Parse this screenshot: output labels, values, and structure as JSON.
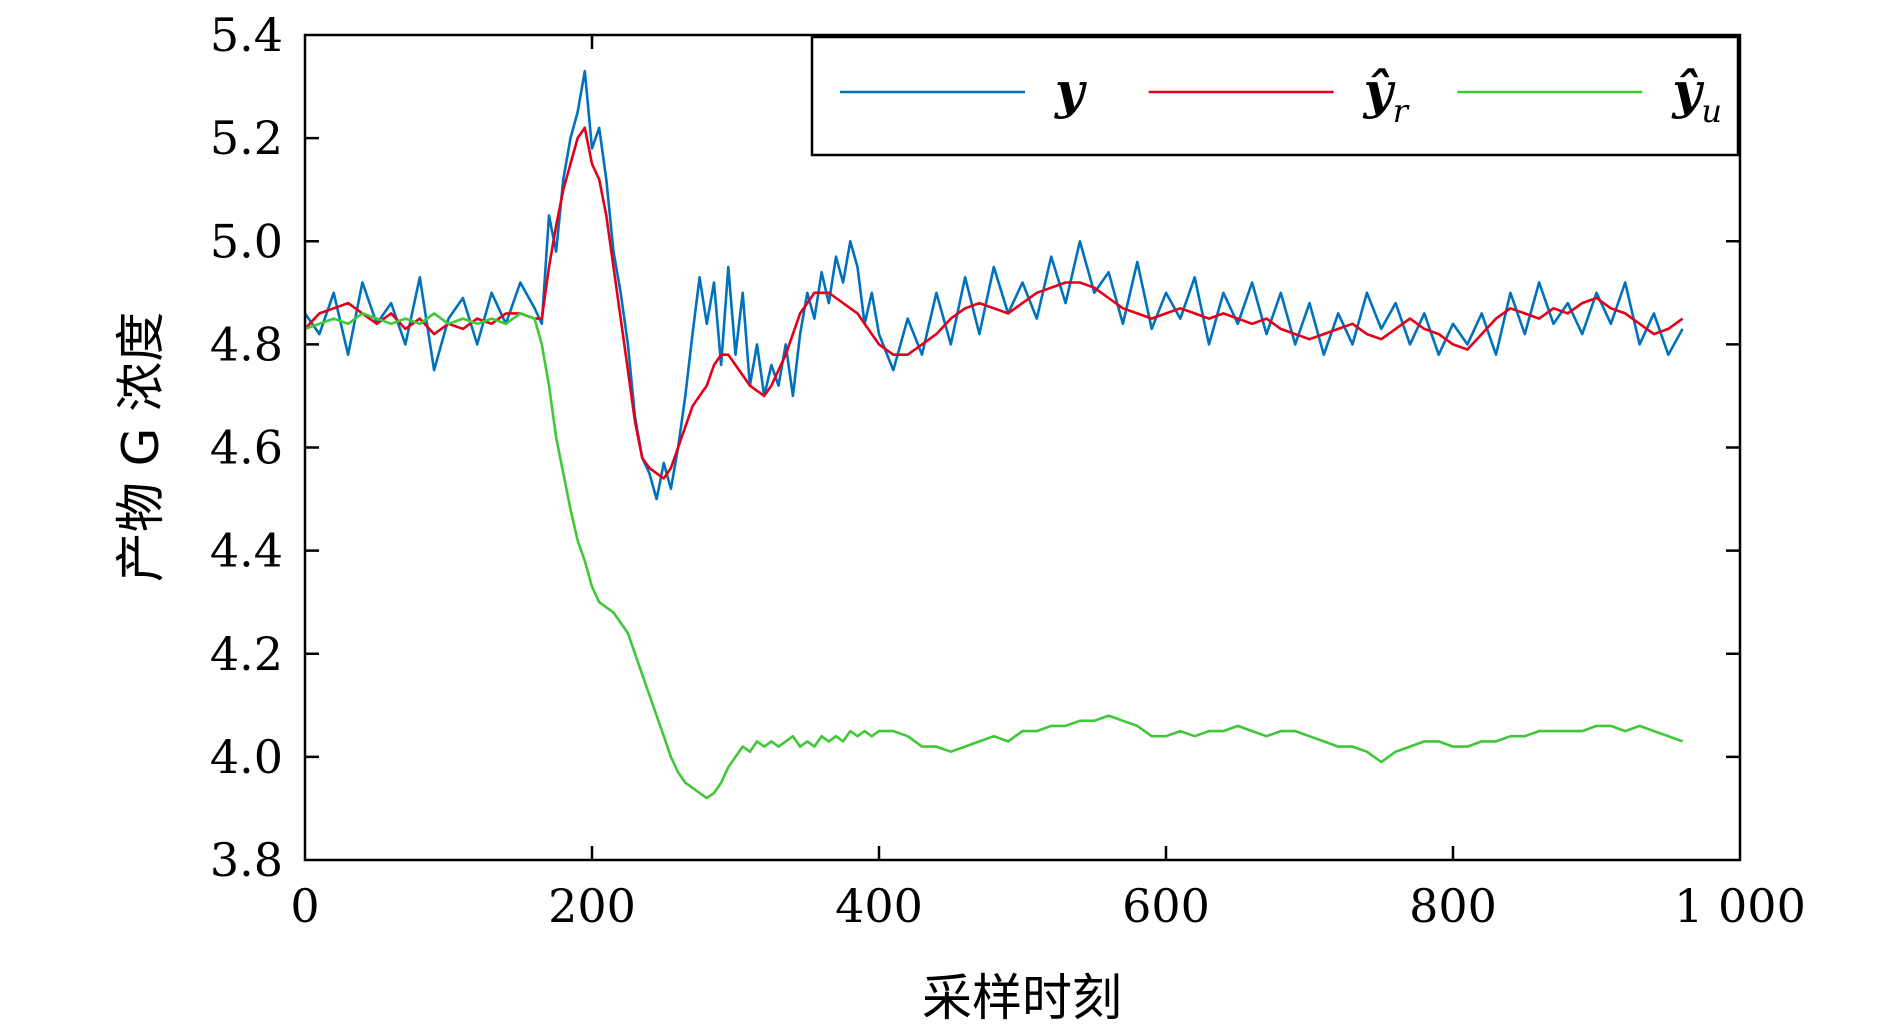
{
  "chart_data": {
    "type": "line",
    "xlabel": "采样时刻",
    "ylabel": "产物 G 浓度",
    "xlim": [
      0,
      1000
    ],
    "ylim": [
      3.8,
      5.4
    ],
    "x_ticks": [
      0,
      200,
      400,
      600,
      800,
      1000
    ],
    "x_tick_labels": [
      "0",
      "200",
      "400",
      "600",
      "800",
      "1 000"
    ],
    "y_ticks": [
      3.8,
      4.0,
      4.2,
      4.4,
      4.6,
      4.8,
      5.0,
      5.2,
      5.4
    ],
    "y_tick_labels": [
      "3.8",
      "4.0",
      "4.2",
      "4.4",
      "4.6",
      "4.8",
      "5.0",
      "5.2",
      "5.4"
    ],
    "grid": false,
    "legend_position": "top-right",
    "series": [
      {
        "name": "y",
        "legend_sub": "",
        "color": "#0072bd",
        "x": [
          0,
          10,
          20,
          30,
          40,
          50,
          60,
          70,
          80,
          90,
          100,
          110,
          120,
          130,
          140,
          150,
          160,
          165,
          170,
          175,
          180,
          185,
          190,
          195,
          200,
          205,
          210,
          215,
          220,
          225,
          230,
          235,
          240,
          245,
          250,
          255,
          260,
          265,
          270,
          275,
          280,
          285,
          290,
          295,
          300,
          305,
          310,
          315,
          320,
          325,
          330,
          335,
          340,
          345,
          350,
          355,
          360,
          365,
          370,
          375,
          380,
          385,
          390,
          395,
          400,
          410,
          420,
          430,
          440,
          450,
          460,
          470,
          480,
          490,
          500,
          510,
          520,
          530,
          540,
          550,
          560,
          570,
          580,
          590,
          600,
          610,
          620,
          630,
          640,
          650,
          660,
          670,
          680,
          690,
          700,
          710,
          720,
          730,
          740,
          750,
          760,
          770,
          780,
          790,
          800,
          810,
          820,
          830,
          840,
          850,
          860,
          870,
          880,
          890,
          900,
          910,
          920,
          930,
          940,
          950,
          960
        ],
        "values": [
          4.86,
          4.82,
          4.9,
          4.78,
          4.92,
          4.84,
          4.88,
          4.8,
          4.93,
          4.75,
          4.85,
          4.89,
          4.8,
          4.9,
          4.84,
          4.92,
          4.87,
          4.84,
          5.05,
          4.98,
          5.12,
          5.2,
          5.25,
          5.33,
          5.18,
          5.22,
          5.12,
          4.98,
          4.9,
          4.8,
          4.66,
          4.58,
          4.55,
          4.5,
          4.57,
          4.52,
          4.6,
          4.7,
          4.82,
          4.93,
          4.84,
          4.92,
          4.76,
          4.95,
          4.78,
          4.9,
          4.72,
          4.8,
          4.7,
          4.76,
          4.72,
          4.8,
          4.7,
          4.82,
          4.9,
          4.85,
          4.94,
          4.88,
          4.97,
          4.92,
          5.0,
          4.95,
          4.84,
          4.9,
          4.82,
          4.75,
          4.85,
          4.78,
          4.9,
          4.8,
          4.93,
          4.82,
          4.95,
          4.86,
          4.92,
          4.85,
          4.97,
          4.88,
          5.0,
          4.9,
          4.94,
          4.84,
          4.96,
          4.83,
          4.9,
          4.85,
          4.93,
          4.8,
          4.9,
          4.84,
          4.92,
          4.82,
          4.9,
          4.8,
          4.88,
          4.78,
          4.86,
          4.8,
          4.9,
          4.83,
          4.88,
          4.8,
          4.86,
          4.78,
          4.84,
          4.8,
          4.86,
          4.78,
          4.9,
          4.82,
          4.92,
          4.84,
          4.88,
          4.82,
          4.9,
          4.84,
          4.92,
          4.8,
          4.86,
          4.78,
          4.83
        ]
      },
      {
        "name": "ŷ",
        "legend_sub": "r",
        "color": "#e3001b",
        "x": [
          0,
          10,
          20,
          30,
          40,
          50,
          60,
          70,
          80,
          90,
          100,
          110,
          120,
          130,
          140,
          150,
          160,
          165,
          170,
          175,
          180,
          185,
          190,
          195,
          200,
          205,
          210,
          215,
          220,
          225,
          230,
          235,
          240,
          245,
          250,
          255,
          260,
          265,
          270,
          275,
          280,
          285,
          290,
          295,
          300,
          305,
          310,
          315,
          320,
          325,
          330,
          335,
          340,
          345,
          350,
          355,
          360,
          365,
          370,
          375,
          380,
          385,
          390,
          395,
          400,
          410,
          420,
          430,
          440,
          450,
          460,
          470,
          480,
          490,
          500,
          510,
          520,
          530,
          540,
          550,
          560,
          570,
          580,
          590,
          600,
          610,
          620,
          630,
          640,
          650,
          660,
          670,
          680,
          690,
          700,
          710,
          720,
          730,
          740,
          750,
          760,
          770,
          780,
          790,
          800,
          810,
          820,
          830,
          840,
          850,
          860,
          870,
          880,
          890,
          900,
          910,
          920,
          930,
          940,
          950,
          960
        ],
        "values": [
          4.83,
          4.86,
          4.87,
          4.88,
          4.86,
          4.84,
          4.86,
          4.83,
          4.85,
          4.82,
          4.84,
          4.83,
          4.85,
          4.84,
          4.86,
          4.86,
          4.85,
          4.85,
          4.95,
          5.03,
          5.1,
          5.15,
          5.2,
          5.22,
          5.15,
          5.12,
          5.05,
          4.95,
          4.85,
          4.75,
          4.65,
          4.58,
          4.56,
          4.55,
          4.54,
          4.56,
          4.6,
          4.64,
          4.68,
          4.7,
          4.72,
          4.76,
          4.78,
          4.78,
          4.76,
          4.74,
          4.72,
          4.71,
          4.7,
          4.72,
          4.75,
          4.78,
          4.82,
          4.86,
          4.88,
          4.9,
          4.9,
          4.9,
          4.89,
          4.88,
          4.87,
          4.86,
          4.84,
          4.82,
          4.8,
          4.78,
          4.78,
          4.8,
          4.82,
          4.85,
          4.87,
          4.88,
          4.87,
          4.86,
          4.88,
          4.9,
          4.91,
          4.92,
          4.92,
          4.91,
          4.89,
          4.87,
          4.86,
          4.85,
          4.86,
          4.87,
          4.86,
          4.85,
          4.86,
          4.85,
          4.84,
          4.85,
          4.83,
          4.82,
          4.81,
          4.82,
          4.83,
          4.84,
          4.82,
          4.81,
          4.83,
          4.85,
          4.83,
          4.82,
          4.8,
          4.79,
          4.82,
          4.85,
          4.87,
          4.86,
          4.85,
          4.87,
          4.86,
          4.88,
          4.89,
          4.87,
          4.86,
          4.84,
          4.82,
          4.83,
          4.85
        ]
      },
      {
        "name": "ŷ",
        "legend_sub": "u",
        "color": "#3fc837",
        "x": [
          0,
          10,
          20,
          30,
          40,
          50,
          60,
          70,
          80,
          90,
          100,
          110,
          120,
          130,
          140,
          150,
          160,
          165,
          170,
          175,
          180,
          185,
          190,
          195,
          200,
          205,
          210,
          215,
          220,
          225,
          230,
          235,
          240,
          245,
          250,
          255,
          260,
          265,
          270,
          275,
          280,
          285,
          290,
          295,
          300,
          305,
          310,
          315,
          320,
          325,
          330,
          335,
          340,
          345,
          350,
          355,
          360,
          365,
          370,
          375,
          380,
          385,
          390,
          395,
          400,
          410,
          420,
          430,
          440,
          450,
          460,
          470,
          480,
          490,
          500,
          510,
          520,
          530,
          540,
          550,
          560,
          570,
          580,
          590,
          600,
          610,
          620,
          630,
          640,
          650,
          660,
          670,
          680,
          690,
          700,
          710,
          720,
          730,
          740,
          750,
          760,
          770,
          780,
          790,
          800,
          810,
          820,
          830,
          840,
          850,
          860,
          870,
          880,
          890,
          900,
          910,
          920,
          930,
          940,
          950,
          960
        ],
        "values": [
          4.83,
          4.84,
          4.85,
          4.84,
          4.86,
          4.85,
          4.84,
          4.85,
          4.84,
          4.86,
          4.84,
          4.85,
          4.84,
          4.85,
          4.84,
          4.86,
          4.85,
          4.8,
          4.72,
          4.62,
          4.55,
          4.48,
          4.42,
          4.38,
          4.33,
          4.3,
          4.29,
          4.28,
          4.26,
          4.24,
          4.2,
          4.16,
          4.12,
          4.08,
          4.04,
          4.0,
          3.97,
          3.95,
          3.94,
          3.93,
          3.92,
          3.93,
          3.95,
          3.98,
          4.0,
          4.02,
          4.01,
          4.03,
          4.02,
          4.03,
          4.02,
          4.03,
          4.04,
          4.02,
          4.03,
          4.02,
          4.04,
          4.03,
          4.04,
          4.03,
          4.05,
          4.04,
          4.05,
          4.04,
          4.05,
          4.05,
          4.04,
          4.02,
          4.02,
          4.01,
          4.02,
          4.03,
          4.04,
          4.03,
          4.05,
          4.05,
          4.06,
          4.06,
          4.07,
          4.07,
          4.08,
          4.07,
          4.06,
          4.04,
          4.04,
          4.05,
          4.04,
          4.05,
          4.05,
          4.06,
          4.05,
          4.04,
          4.05,
          4.05,
          4.04,
          4.03,
          4.02,
          4.02,
          4.01,
          3.99,
          4.01,
          4.02,
          4.03,
          4.03,
          4.02,
          4.02,
          4.03,
          4.03,
          4.04,
          4.04,
          4.05,
          4.05,
          4.05,
          4.05,
          4.06,
          4.06,
          4.05,
          4.06,
          4.05,
          4.04,
          4.03
        ]
      }
    ]
  }
}
